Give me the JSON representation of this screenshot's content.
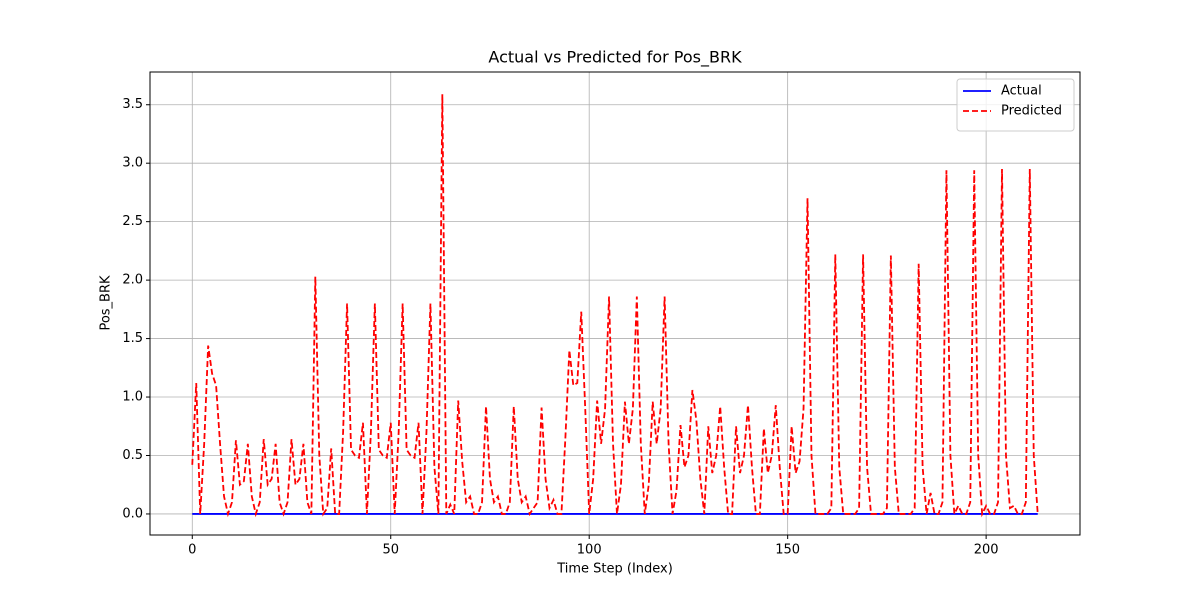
{
  "chart_data": {
    "type": "line",
    "title": "Actual vs Predicted for Pos_BRK",
    "x_label": "Time Step (Index)",
    "y_label": "Pos_BRK",
    "xlim": [
      -10.65,
      223.65
    ],
    "ylim": [
      -0.18,
      3.78
    ],
    "xticks": [
      0,
      50,
      100,
      150,
      200
    ],
    "yticks": [
      {
        "value": 0,
        "label": "0.0"
      },
      0.5,
      {
        "value": 1,
        "label": "1.0"
      },
      1.5,
      {
        "value": 2,
        "label": "2.0"
      },
      2.5,
      {
        "value": 3,
        "label": "3.0"
      },
      3.5
    ],
    "grid": true,
    "legend": "upper right",
    "x": [
      0,
      1,
      2,
      3,
      4,
      5,
      6,
      7,
      8,
      9,
      10,
      11,
      12,
      13,
      14,
      15,
      16,
      17,
      18,
      19,
      20,
      21,
      22,
      23,
      24,
      25,
      26,
      27,
      28,
      29,
      30,
      31,
      32,
      33,
      34,
      35,
      36,
      37,
      38,
      39,
      40,
      41,
      42,
      43,
      44,
      45,
      46,
      47,
      48,
      49,
      50,
      51,
      52,
      53,
      54,
      55,
      56,
      57,
      58,
      59,
      60,
      61,
      62,
      63,
      64,
      65,
      66,
      67,
      68,
      69,
      70,
      71,
      72,
      73,
      74,
      75,
      76,
      77,
      78,
      79,
      80,
      81,
      82,
      83,
      84,
      85,
      86,
      87,
      88,
      89,
      90,
      91,
      92,
      93,
      94,
      95,
      96,
      97,
      98,
      99,
      100,
      101,
      102,
      103,
      104,
      105,
      106,
      107,
      108,
      109,
      110,
      111,
      112,
      113,
      114,
      115,
      116,
      117,
      118,
      119,
      120,
      121,
      122,
      123,
      124,
      125,
      126,
      127,
      128,
      129,
      130,
      131,
      132,
      133,
      134,
      135,
      136,
      137,
      138,
      139,
      140,
      141,
      142,
      143,
      144,
      145,
      146,
      147,
      148,
      149,
      150,
      151,
      152,
      153,
      154,
      155,
      156,
      157,
      158,
      159,
      160,
      161,
      162,
      163,
      164,
      165,
      166,
      167,
      168,
      169,
      170,
      171,
      172,
      173,
      174,
      175,
      176,
      177,
      178,
      179,
      180,
      181,
      182,
      183,
      184,
      185,
      186,
      187,
      188,
      189,
      190,
      191,
      192,
      193,
      194,
      195,
      196,
      197,
      198,
      199,
      200,
      201,
      202,
      203,
      204,
      205,
      206,
      207,
      208,
      209,
      210,
      211,
      212,
      213
    ],
    "series": [
      {
        "name": "Actual",
        "color": "#0000ff",
        "dash": "solid",
        "values": [
          0,
          0,
          0,
          0,
          0,
          0,
          0,
          0,
          0,
          0,
          0,
          0,
          0,
          0,
          0,
          0,
          0,
          0,
          0,
          0,
          0,
          0,
          0,
          0,
          0,
          0,
          0,
          0,
          0,
          0,
          0,
          0,
          0,
          0,
          0,
          0,
          0,
          0,
          0,
          0,
          0,
          0,
          0,
          0,
          0,
          0,
          0,
          0,
          0,
          0,
          0,
          0,
          0,
          0,
          0,
          0,
          0,
          0,
          0,
          0,
          0,
          0,
          0,
          0,
          0,
          0,
          0,
          0,
          0,
          0,
          0,
          0,
          0,
          0,
          0,
          0,
          0,
          0,
          0,
          0,
          0,
          0,
          0,
          0,
          0,
          0,
          0,
          0,
          0,
          0,
          0,
          0,
          0,
          0,
          0,
          0,
          0,
          0,
          0,
          0,
          0,
          0,
          0,
          0,
          0,
          0,
          0,
          0,
          0,
          0,
          0,
          0,
          0,
          0,
          0,
          0,
          0,
          0,
          0,
          0,
          0,
          0,
          0,
          0,
          0,
          0,
          0,
          0,
          0,
          0,
          0,
          0,
          0,
          0,
          0,
          0,
          0,
          0,
          0,
          0,
          0,
          0,
          0,
          0,
          0,
          0,
          0,
          0,
          0,
          0,
          0,
          0,
          0,
          0,
          0,
          0,
          0,
          0,
          0,
          0,
          0,
          0,
          0,
          0,
          0,
          0,
          0,
          0,
          0,
          0,
          0,
          0,
          0,
          0,
          0,
          0,
          0,
          0,
          0,
          0,
          0,
          0,
          0,
          0,
          0,
          0,
          0,
          0,
          0,
          0,
          0,
          0,
          0,
          0,
          0,
          0,
          0,
          0,
          0,
          0,
          0,
          0,
          0,
          0,
          0,
          0,
          0,
          0,
          0,
          0,
          0,
          0,
          0,
          0
        ]
      },
      {
        "name": "Predicted",
        "color": "#ff0000",
        "dash": "dashed",
        "values": [
          0.42,
          1.12,
          0.0,
          0.6,
          1.44,
          1.2,
          1.1,
          0.6,
          0.15,
          0.0,
          0.1,
          0.63,
          0.25,
          0.28,
          0.6,
          0.15,
          0.0,
          0.1,
          0.64,
          0.25,
          0.3,
          0.6,
          0.1,
          0.0,
          0.1,
          0.64,
          0.25,
          0.3,
          0.6,
          0.1,
          0.0,
          2.03,
          0.5,
          0.0,
          0.05,
          0.56,
          0.0,
          0.0,
          0.7,
          1.8,
          0.55,
          0.5,
          0.48,
          0.78,
          0.0,
          0.7,
          1.8,
          0.55,
          0.5,
          0.48,
          0.78,
          0.0,
          0.7,
          1.8,
          0.55,
          0.5,
          0.48,
          0.78,
          0.0,
          0.7,
          1.8,
          0.4,
          0.0,
          3.59,
          0.0,
          0.08,
          0.0,
          0.97,
          0.45,
          0.1,
          0.15,
          0.0,
          0.0,
          0.1,
          0.92,
          0.3,
          0.1,
          0.15,
          0.0,
          0.0,
          0.1,
          0.92,
          0.3,
          0.1,
          0.15,
          0.0,
          0.05,
          0.1,
          0.91,
          0.3,
          0.05,
          0.12,
          0.0,
          0.0,
          0.65,
          1.4,
          1.1,
          1.12,
          1.73,
          0.9,
          0.0,
          0.3,
          0.97,
          0.6,
          0.9,
          1.86,
          0.6,
          0.0,
          0.25,
          0.96,
          0.6,
          0.9,
          1.86,
          0.6,
          0.0,
          0.25,
          0.96,
          0.6,
          0.9,
          1.86,
          0.6,
          0.0,
          0.2,
          0.76,
          0.4,
          0.5,
          1.06,
          0.8,
          0.3,
          0.0,
          0.75,
          0.35,
          0.5,
          0.92,
          0.4,
          0.0,
          0.0,
          0.75,
          0.35,
          0.5,
          0.93,
          0.4,
          0.0,
          0.0,
          0.73,
          0.35,
          0.5,
          0.93,
          0.4,
          0.0,
          0.0,
          0.75,
          0.35,
          0.45,
          0.9,
          2.7,
          0.5,
          0.0,
          0.0,
          0.0,
          0.0,
          0.05,
          2.22,
          0.4,
          0.0,
          0.0,
          0.0,
          0.0,
          0.05,
          2.22,
          0.4,
          0.0,
          0.0,
          0.0,
          0.0,
          0.05,
          2.21,
          0.4,
          0.0,
          0.0,
          0.0,
          0.0,
          0.05,
          2.14,
          0.4,
          0.0,
          0.18,
          0.0,
          0.0,
          0.1,
          2.94,
          0.5,
          0.0,
          0.07,
          0.0,
          0.0,
          0.1,
          2.94,
          0.5,
          0.0,
          0.07,
          0.0,
          0.0,
          0.1,
          2.95,
          0.5,
          0.05,
          0.07,
          0.0,
          0.0,
          0.1,
          2.95,
          0.5,
          0.0
        ]
      }
    ]
  }
}
